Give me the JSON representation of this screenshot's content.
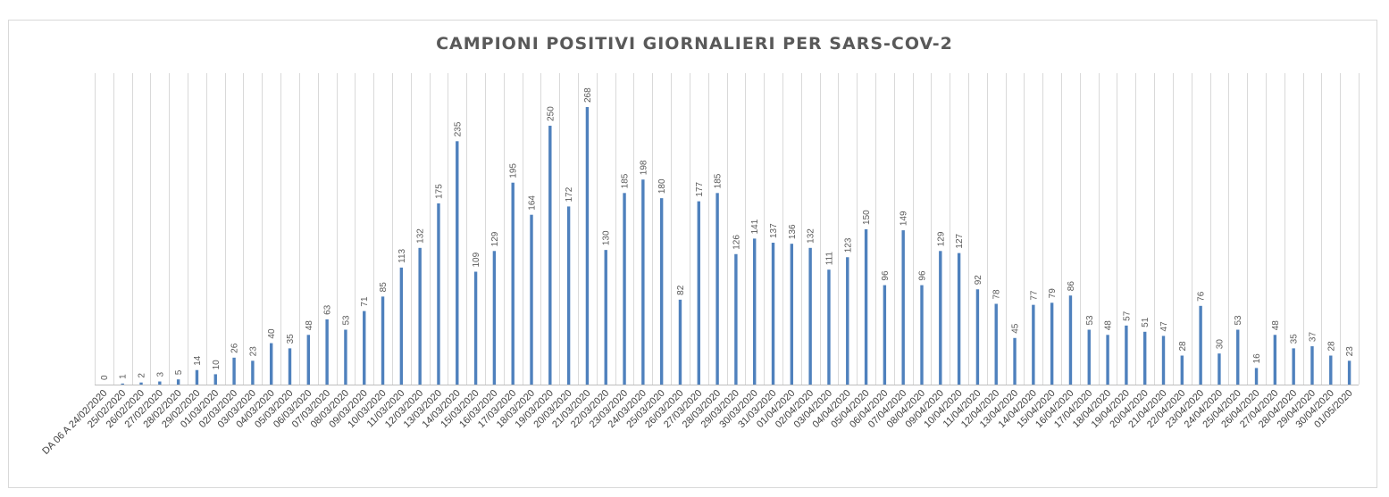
{
  "chart_data": {
    "type": "bar",
    "title": "CAMPIONI POSITIVI GIORNALIERI PER SARS-COV-2",
    "xlabel": "",
    "ylabel": "",
    "ylim": [
      0,
      275
    ],
    "grid": "vertical",
    "legend": "none",
    "bar_color": "#4f81bd",
    "categories": [
      "DA 06 A 24/02/2020",
      "25/02/2020",
      "26/02/2020",
      "27/02/2020",
      "28/02/2020",
      "29/02/2020",
      "01/03/2020",
      "02/03/2020",
      "03/03/2020",
      "04/03/2020",
      "05/03/2020",
      "06/03/2020",
      "07/03/2020",
      "08/03/2020",
      "09/03/2020",
      "10/03/2020",
      "11/03/2020",
      "12/03/2020",
      "13/03/2020",
      "14/03/2020",
      "15/03/2020",
      "16/03/2020",
      "17/03/2020",
      "18/03/2020",
      "19/03/2020",
      "20/03/2020",
      "21/03/2020",
      "22/03/2020",
      "23/03/2020",
      "24/03/2020",
      "25/03/2020",
      "26/03/2020",
      "27/03/2020",
      "28/03/2020",
      "29/03/2020",
      "30/03/2020",
      "31/03/2020",
      "01/04/2020",
      "02/04/2020",
      "03/04/2020",
      "04/04/2020",
      "05/04/2020",
      "06/04/2020",
      "07/04/2020",
      "08/04/2020",
      "09/04/2020",
      "10/04/2020",
      "11/04/2020",
      "12/04/2020",
      "13/04/2020",
      "14/04/2020",
      "15/04/2020",
      "16/04/2020",
      "17/04/2020",
      "18/04/2020",
      "19/04/2020",
      "20/04/2020",
      "21/04/2020",
      "22/04/2020",
      "23/04/2020",
      "24/04/2020",
      "25/04/2020",
      "26/04/2020",
      "27/04/2020",
      "28/04/2020",
      "29/04/2020",
      "30/04/2020",
      "01/05/2020"
    ],
    "values": [
      0,
      1,
      2,
      3,
      5,
      14,
      10,
      26,
      23,
      40,
      35,
      48,
      63,
      53,
      71,
      85,
      113,
      132,
      175,
      235,
      109,
      129,
      195,
      164,
      250,
      172,
      268,
      130,
      185,
      198,
      180,
      82,
      177,
      185,
      126,
      141,
      137,
      136,
      132,
      111,
      123,
      150,
      96,
      149,
      96,
      129,
      127,
      92,
      78,
      45,
      77,
      79,
      86,
      53,
      48,
      57,
      51,
      47,
      28,
      76,
      30,
      53,
      16,
      48,
      35,
      37,
      28,
      23
    ]
  }
}
